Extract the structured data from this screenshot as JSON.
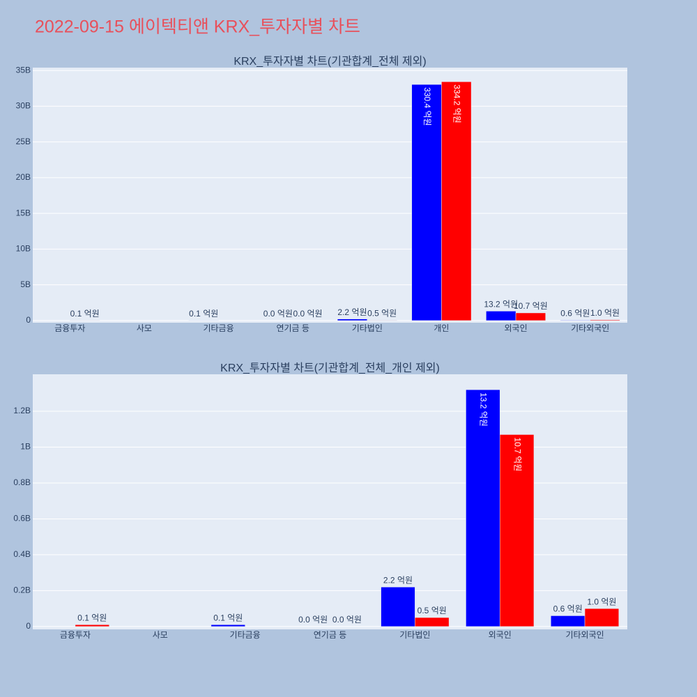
{
  "title": "2022-09-15 에이텍티앤 KRX_투자자별 차트",
  "chart_data": [
    {
      "type": "bar",
      "title": "KRX_투자자별 차트(기관합계_전체 제외)",
      "categories": [
        "금융투자",
        "사모",
        "기타금융",
        "연기금 등",
        "기타법인",
        "개인",
        "외국인",
        "기타외국인"
      ],
      "series": [
        {
          "color": "#0000ff",
          "values": [
            null,
            null,
            10000000,
            0,
            220000000,
            33040000000,
            1320000000,
            60000000
          ],
          "value_labels": [
            null,
            null,
            "0.1 억원",
            "0.0 억원",
            "2.2 억원",
            "330.4 억원",
            "13.2 억원",
            "0.6 억원"
          ]
        },
        {
          "color": "#ff0000",
          "values": [
            10000000,
            null,
            null,
            0,
            50000000,
            33420000000,
            1070000000,
            100000000
          ],
          "value_labels": [
            "0.1 억원",
            null,
            null,
            "0.0 억원",
            "0.5 억원",
            "334.2 억원",
            "10.7 억원",
            "1.0 억원"
          ]
        }
      ],
      "ylim": [
        -300000000,
        35400000000
      ],
      "yticks": [
        0,
        {
          "value": 5000000000,
          "label": "5B"
        },
        {
          "value": 10000000000,
          "label": "10B"
        },
        {
          "value": 15000000000,
          "label": "15B"
        },
        {
          "value": 20000000000,
          "label": "20B"
        },
        {
          "value": 25000000000,
          "label": "25B"
        },
        {
          "value": 30000000000,
          "label": "30B"
        },
        {
          "value": 35000000000,
          "label": "35B"
        }
      ],
      "grid": true
    },
    {
      "type": "bar",
      "title": "KRX_투자자별 차트(기관합계_전체_개인 제외)",
      "categories": [
        "금융투자",
        "사모",
        "기타금융",
        "연기금 등",
        "기타법인",
        "외국인",
        "기타외국인"
      ],
      "series": [
        {
          "color": "#0000ff",
          "values": [
            null,
            null,
            10000000,
            0,
            220000000,
            1320000000,
            60000000
          ],
          "value_labels": [
            null,
            null,
            "0.1 억원",
            "0.0 억원",
            "2.2 억원",
            "13.2 억원",
            "0.6 억원"
          ]
        },
        {
          "color": "#ff0000",
          "values": [
            10000000,
            null,
            null,
            0,
            50000000,
            1070000000,
            100000000
          ],
          "value_labels": [
            "0.1 억원",
            null,
            null,
            "0.0 억원",
            "0.5 억원",
            "10.7 억원",
            "1.0 억원"
          ]
        }
      ],
      "ylim": [
        -16000000,
        1406000000
      ],
      "yticks": [
        0,
        {
          "value": 200000000,
          "label": "0.2B"
        },
        {
          "value": 400000000,
          "label": "0.4B"
        },
        {
          "value": 600000000,
          "label": "0.6B"
        },
        {
          "value": 800000000,
          "label": "0.8B"
        },
        {
          "value": 1000000000,
          "label": "1B"
        },
        {
          "value": 1200000000,
          "label": "1.2B"
        }
      ],
      "grid": true
    }
  ]
}
